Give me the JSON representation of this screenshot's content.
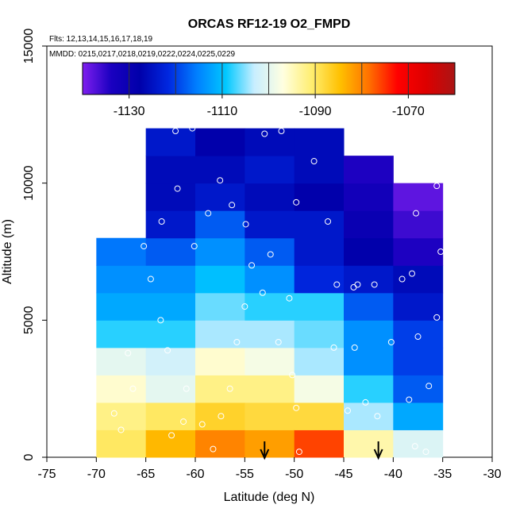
{
  "chart_data": {
    "type": "heatmap",
    "title": "ORCAS RF12-19 O2_FMPD",
    "flights_label": "Flts: 12,13,14,15,16,17,18,19",
    "dates_label": "MMDD: 0215,0217,0218,0219,0222,0224,0225,0229",
    "xlabel": "Latitude (deg N)",
    "ylabel": "Altitude (m)",
    "xlim": [
      -75,
      -30
    ],
    "ylim": [
      0,
      15000
    ],
    "x_ticks": [
      -75,
      -70,
      -65,
      -60,
      -55,
      -50,
      -45,
      -40,
      -35,
      -30
    ],
    "y_ticks": [
      0,
      5000,
      10000,
      15000
    ],
    "colorbar": {
      "min": -1140,
      "max": -1060,
      "ticks": [
        -1130,
        -1110,
        -1090,
        -1070
      ],
      "colors": [
        "#7f1fef",
        "#1a00c0",
        "#0000aa",
        "#0028e0",
        "#0080ff",
        "#00c8ff",
        "#c8eeff",
        "#ffffe0",
        "#ffee70",
        "#ffc000",
        "#ff7000",
        "#ff0000",
        "#dd0000",
        "#aa1515"
      ]
    },
    "lat_bins": [
      -70,
      -65,
      -60,
      -55,
      -50,
      -45,
      -40,
      -35
    ],
    "alt_bin_size": 1000,
    "columns": [
      {
        "lat_start": -70,
        "values": [
          -1090,
          -1092,
          -1096,
          -1100,
          -1108,
          -1112,
          -1114,
          -1116
        ]
      },
      {
        "lat_start": -65,
        "values": [
          -1084,
          -1090,
          -1100,
          -1102,
          -1108,
          -1112,
          -1114,
          -1118,
          -1124,
          -1126,
          -1126,
          -1124
        ]
      },
      {
        "lat_start": -60,
        "values": [
          -1080,
          -1087,
          -1092,
          -1096,
          -1104,
          -1106,
          -1110,
          -1114,
          -1118,
          -1124,
          -1126,
          -1128
        ]
      },
      {
        "lat_start": -55,
        "values": [
          -1082,
          -1088,
          -1092,
          -1098,
          -1104,
          -1108,
          -1114,
          -1118,
          -1124,
          -1126,
          -1124,
          -1126
        ]
      },
      {
        "lat_start": -50,
        "values": [
          -1076,
          -1088,
          -1098,
          -1104,
          -1106,
          -1108,
          -1122,
          -1124,
          -1124,
          -1128,
          -1126,
          -1126
        ]
      },
      {
        "lat_start": -45,
        "values": [
          -1094,
          -1104,
          -1108,
          -1114,
          -1114,
          -1118,
          -1124,
          -1128,
          -1130,
          -1132,
          -1134
        ]
      },
      {
        "lat_start": -40,
        "values": [
          -1101,
          -1112,
          -1118,
          -1120,
          -1120,
          -1124,
          -1126,
          -1134,
          -1136,
          -1138
        ]
      }
    ],
    "obs_points": [
      [
        -67.5,
        1000
      ],
      [
        -68.2,
        1600
      ],
      [
        -66.3,
        2500
      ],
      [
        -66.8,
        3800
      ],
      [
        -64.5,
        6500
      ],
      [
        -65.2,
        7700
      ],
      [
        -63.5,
        5000
      ],
      [
        -62.8,
        3900
      ],
      [
        -61.2,
        1300
      ],
      [
        -62.4,
        800
      ],
      [
        -60.9,
        2500
      ],
      [
        -59.3,
        1200
      ],
      [
        -58.2,
        300
      ],
      [
        -57.4,
        1500
      ],
      [
        -56.5,
        2500
      ],
      [
        -55.8,
        4200
      ],
      [
        -55.0,
        5500
      ],
      [
        -54.3,
        7000
      ],
      [
        -53.2,
        6000
      ],
      [
        -52.4,
        7400
      ],
      [
        -51.6,
        4200
      ],
      [
        -50.2,
        3000
      ],
      [
        -49.8,
        1800
      ],
      [
        -49.5,
        200
      ],
      [
        -50.5,
        5800
      ],
      [
        -61.8,
        9800
      ],
      [
        -63.4,
        8600
      ],
      [
        -60.1,
        7700
      ],
      [
        -58.7,
        8900
      ],
      [
        -57.5,
        10100
      ],
      [
        -56.3,
        9200
      ],
      [
        -54.9,
        8500
      ],
      [
        -53.0,
        11800
      ],
      [
        -51.3,
        11900
      ],
      [
        -49.8,
        9300
      ],
      [
        -48.0,
        10800
      ],
      [
        -46.6,
        8600
      ],
      [
        -44.0,
        6200
      ],
      [
        -43.6,
        6300
      ],
      [
        -41.9,
        6300
      ],
      [
        -42.8,
        2000
      ],
      [
        -41.6,
        1500
      ],
      [
        -40.2,
        4200
      ],
      [
        -38.4,
        2100
      ],
      [
        -37.5,
        4400
      ],
      [
        -36.4,
        2600
      ],
      [
        -35.6,
        5100
      ],
      [
        -35.2,
        7500
      ],
      [
        -35.6,
        9900
      ],
      [
        -37.7,
        8900
      ],
      [
        -38.1,
        6700
      ],
      [
        -39.1,
        6500
      ],
      [
        -37.8,
        400
      ],
      [
        -36.7,
        200
      ],
      [
        -44.6,
        1700
      ],
      [
        -46.0,
        4000
      ],
      [
        -45.7,
        6300
      ],
      [
        -43.9,
        4000
      ],
      [
        -62.0,
        11900
      ],
      [
        -60.3,
        12000
      ]
    ],
    "arrow_lats": [
      -53,
      -41.5
    ]
  }
}
